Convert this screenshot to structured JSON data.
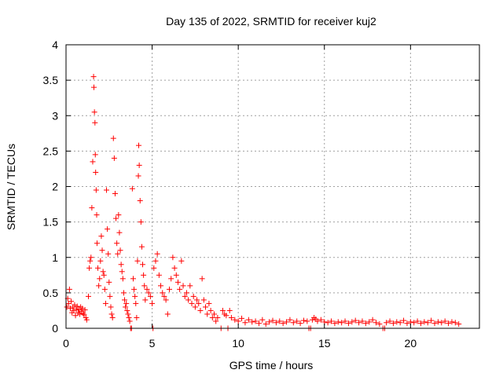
{
  "chart_data": {
    "type": "scatter",
    "title": "Day 135 of 2022, SRMTID for receiver kuj2",
    "xlabel": "GPS time / hours",
    "ylabel": "SRMTID / TECUs",
    "xlim": [
      0,
      24
    ],
    "ylim": [
      0,
      4
    ],
    "xticks": [
      0,
      5,
      10,
      15,
      20
    ],
    "yticks": [
      0,
      0.5,
      1,
      1.5,
      2,
      2.5,
      3,
      3.5,
      4
    ],
    "xtick_labels": [
      "0",
      "5",
      "10",
      "15",
      "20"
    ],
    "ytick_labels": [
      "0",
      "0.5",
      "1",
      "1.5",
      "2",
      "2.5",
      "3",
      "3.5",
      "4"
    ],
    "grid": true,
    "marker": "+",
    "color": "#ff0000",
    "series": [
      {
        "name": "SRMTID",
        "points": [
          [
            0.05,
            0.3
          ],
          [
            0.1,
            0.42
          ],
          [
            0.15,
            0.35
          ],
          [
            0.2,
            0.55
          ],
          [
            0.25,
            0.28
          ],
          [
            0.3,
            0.38
          ],
          [
            0.35,
            0.22
          ],
          [
            0.4,
            0.3
          ],
          [
            0.45,
            0.25
          ],
          [
            0.5,
            0.33
          ],
          [
            0.55,
            0.18
          ],
          [
            0.6,
            0.27
          ],
          [
            0.65,
            0.31
          ],
          [
            0.7,
            0.22
          ],
          [
            0.75,
            0.26
          ],
          [
            0.8,
            0.2
          ],
          [
            0.85,
            0.3
          ],
          [
            0.9,
            0.24
          ],
          [
            0.95,
            0.28
          ],
          [
            1.0,
            0.21
          ],
          [
            1.05,
            0.19
          ],
          [
            1.1,
            0.26
          ],
          [
            1.15,
            0.15
          ],
          [
            1.2,
            0.12
          ],
          [
            1.3,
            0.45
          ],
          [
            1.35,
            0.85
          ],
          [
            1.4,
            0.95
          ],
          [
            1.45,
            1.0
          ],
          [
            1.5,
            1.7
          ],
          [
            1.55,
            2.35
          ],
          [
            1.6,
            3.55
          ],
          [
            1.62,
            3.4
          ],
          [
            1.65,
            3.05
          ],
          [
            1.68,
            2.9
          ],
          [
            1.7,
            2.45
          ],
          [
            1.72,
            2.2
          ],
          [
            1.75,
            1.95
          ],
          [
            1.78,
            1.6
          ],
          [
            1.8,
            1.2
          ],
          [
            1.85,
            0.85
          ],
          [
            1.9,
            0.6
          ],
          [
            1.95,
            0.7
          ],
          [
            2.0,
            0.95
          ],
          [
            2.05,
            1.3
          ],
          [
            2.1,
            1.1
          ],
          [
            2.15,
            0.8
          ],
          [
            2.2,
            0.75
          ],
          [
            2.25,
            0.55
          ],
          [
            2.3,
            0.35
          ],
          [
            2.35,
            1.95
          ],
          [
            2.4,
            1.4
          ],
          [
            2.45,
            1.05
          ],
          [
            2.5,
            0.65
          ],
          [
            2.55,
            0.45
          ],
          [
            2.6,
            0.3
          ],
          [
            2.65,
            0.2
          ],
          [
            2.7,
            0.15
          ],
          [
            2.75,
            2.68
          ],
          [
            2.8,
            2.4
          ],
          [
            2.85,
            1.9
          ],
          [
            2.9,
            1.55
          ],
          [
            2.95,
            1.2
          ],
          [
            3.0,
            1.05
          ],
          [
            3.05,
            1.6
          ],
          [
            3.1,
            1.35
          ],
          [
            3.15,
            1.1
          ],
          [
            3.2,
            0.9
          ],
          [
            3.25,
            0.8
          ],
          [
            3.3,
            0.7
          ],
          [
            3.35,
            0.5
          ],
          [
            3.4,
            0.4
          ],
          [
            3.45,
            0.3
          ],
          [
            3.5,
            0.35
          ],
          [
            3.55,
            0.25
          ],
          [
            3.6,
            0.2
          ],
          [
            3.65,
            0.15
          ],
          [
            3.7,
            0.1
          ],
          [
            3.75,
            0.0
          ],
          [
            3.8,
            0.0
          ],
          [
            3.85,
            1.97
          ],
          [
            3.9,
            0.7
          ],
          [
            3.95,
            0.55
          ],
          [
            4.0,
            0.45
          ],
          [
            4.05,
            0.35
          ],
          [
            4.1,
            0.15
          ],
          [
            4.15,
            0.95
          ],
          [
            4.2,
            2.15
          ],
          [
            4.22,
            2.58
          ],
          [
            4.25,
            2.3
          ],
          [
            4.3,
            1.8
          ],
          [
            4.35,
            1.5
          ],
          [
            4.4,
            1.15
          ],
          [
            4.45,
            0.9
          ],
          [
            4.5,
            0.75
          ],
          [
            4.55,
            0.6
          ],
          [
            4.6,
            0.4
          ],
          [
            4.7,
            0.55
          ],
          [
            4.8,
            0.5
          ],
          [
            4.9,
            0.45
          ],
          [
            5.0,
            0.35
          ],
          [
            5.05,
            0.0
          ],
          [
            5.1,
            0.85
          ],
          [
            5.2,
            0.95
          ],
          [
            5.3,
            1.05
          ],
          [
            5.4,
            0.75
          ],
          [
            5.5,
            0.6
          ],
          [
            5.6,
            0.5
          ],
          [
            5.7,
            0.45
          ],
          [
            5.8,
            0.4
          ],
          [
            5.9,
            0.2
          ],
          [
            6.0,
            0.55
          ],
          [
            6.1,
            0.7
          ],
          [
            6.2,
            1.0
          ],
          [
            6.3,
            0.85
          ],
          [
            6.4,
            0.75
          ],
          [
            6.5,
            0.65
          ],
          [
            6.6,
            0.55
          ],
          [
            6.7,
            0.95
          ],
          [
            6.8,
            0.6
          ],
          [
            6.9,
            0.45
          ],
          [
            7.0,
            0.5
          ],
          [
            7.1,
            0.4
          ],
          [
            7.2,
            0.6
          ],
          [
            7.3,
            0.35
          ],
          [
            7.4,
            0.45
          ],
          [
            7.5,
            0.3
          ],
          [
            7.6,
            0.4
          ],
          [
            7.7,
            0.35
          ],
          [
            7.8,
            0.25
          ],
          [
            7.9,
            0.7
          ],
          [
            8.0,
            0.4
          ],
          [
            8.1,
            0.3
          ],
          [
            8.2,
            0.2
          ],
          [
            8.3,
            0.35
          ],
          [
            8.4,
            0.25
          ],
          [
            8.5,
            0.15
          ],
          [
            8.6,
            0.2
          ],
          [
            8.7,
            0.1
          ],
          [
            8.8,
            0.15
          ],
          [
            9.0,
            0.0
          ],
          [
            9.1,
            0.25
          ],
          [
            9.2,
            0.2
          ],
          [
            9.3,
            0.18
          ],
          [
            9.4,
            0.0
          ],
          [
            9.5,
            0.25
          ],
          [
            9.6,
            0.15
          ],
          [
            9.8,
            0.12
          ],
          [
            10.0,
            0.1
          ],
          [
            10.2,
            0.14
          ],
          [
            10.4,
            0.08
          ],
          [
            10.6,
            0.12
          ],
          [
            10.8,
            0.09
          ],
          [
            11.0,
            0.1
          ],
          [
            11.2,
            0.07
          ],
          [
            11.4,
            0.12
          ],
          [
            11.6,
            0.06
          ],
          [
            11.8,
            0.09
          ],
          [
            12.0,
            0.11
          ],
          [
            12.2,
            0.08
          ],
          [
            12.4,
            0.1
          ],
          [
            12.6,
            0.07
          ],
          [
            12.8,
            0.09
          ],
          [
            13.0,
            0.12
          ],
          [
            13.2,
            0.08
          ],
          [
            13.4,
            0.1
          ],
          [
            13.6,
            0.07
          ],
          [
            13.8,
            0.11
          ],
          [
            14.0,
            0.1
          ],
          [
            14.1,
            0.0
          ],
          [
            14.2,
            0.0
          ],
          [
            14.3,
            0.12
          ],
          [
            14.4,
            0.15
          ],
          [
            14.5,
            0.13
          ],
          [
            14.6,
            0.1
          ],
          [
            14.8,
            0.12
          ],
          [
            15.0,
            0.09
          ],
          [
            15.2,
            0.08
          ],
          [
            15.4,
            0.1
          ],
          [
            15.6,
            0.07
          ],
          [
            15.8,
            0.09
          ],
          [
            16.0,
            0.08
          ],
          [
            16.2,
            0.1
          ],
          [
            16.4,
            0.07
          ],
          [
            16.6,
            0.09
          ],
          [
            16.8,
            0.11
          ],
          [
            17.0,
            0.08
          ],
          [
            17.2,
            0.1
          ],
          [
            17.4,
            0.07
          ],
          [
            17.6,
            0.09
          ],
          [
            17.8,
            0.12
          ],
          [
            18.0,
            0.08
          ],
          [
            18.2,
            0.06
          ],
          [
            18.4,
            0.0
          ],
          [
            18.5,
            0.0
          ],
          [
            18.6,
            0.08
          ],
          [
            18.8,
            0.1
          ],
          [
            19.0,
            0.07
          ],
          [
            19.2,
            0.09
          ],
          [
            19.4,
            0.08
          ],
          [
            19.6,
            0.11
          ],
          [
            19.8,
            0.07
          ],
          [
            20.0,
            0.09
          ],
          [
            20.2,
            0.08
          ],
          [
            20.4,
            0.1
          ],
          [
            20.6,
            0.07
          ],
          [
            20.8,
            0.09
          ],
          [
            21.0,
            0.08
          ],
          [
            21.2,
            0.11
          ],
          [
            21.4,
            0.07
          ],
          [
            21.6,
            0.09
          ],
          [
            21.8,
            0.08
          ],
          [
            22.0,
            0.1
          ],
          [
            22.2,
            0.07
          ],
          [
            22.4,
            0.09
          ],
          [
            22.6,
            0.08
          ],
          [
            22.8,
            0.06
          ]
        ]
      }
    ]
  }
}
